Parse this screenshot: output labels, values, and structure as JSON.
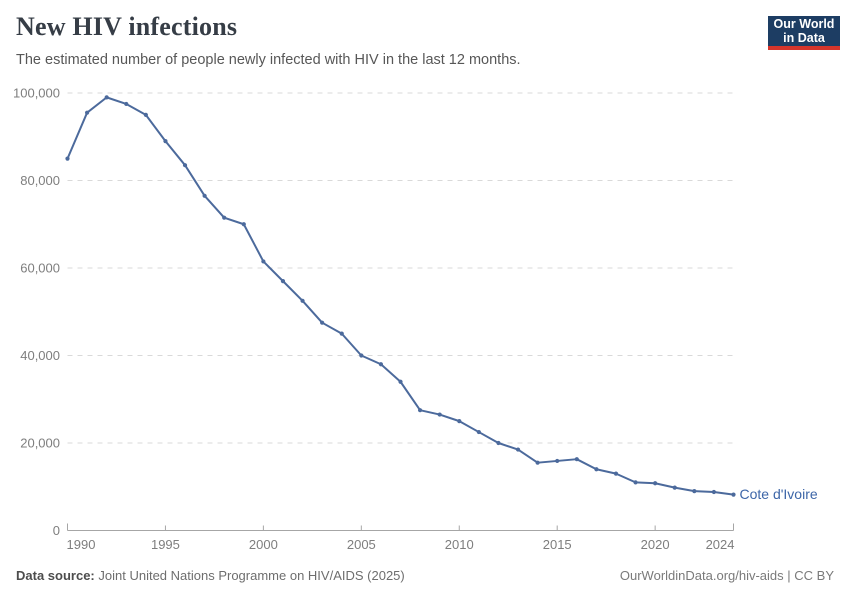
{
  "header": {
    "title": "New HIV infections",
    "subtitle": "The estimated number of people newly infected with HIV in the last 12 months.",
    "logo": {
      "line1": "Our World",
      "line2": "in Data"
    }
  },
  "chart_data": {
    "type": "line",
    "title": "New HIV infections",
    "entity_label": "Cote d'Ivoire",
    "grid": "horizontal-dashed",
    "legend_position": "end-of-line-label",
    "xlabel": "",
    "ylabel": "",
    "xlim": [
      1990,
      2024
    ],
    "ylim": [
      0,
      100000
    ],
    "xticks": [
      1990,
      1995,
      2000,
      2005,
      2010,
      2015,
      2020,
      2024
    ],
    "yticks": [
      0,
      20000,
      40000,
      60000,
      80000,
      100000
    ],
    "ytick_labels": [
      "0",
      "20,000",
      "40,000",
      "60,000",
      "80,000",
      "100,000"
    ],
    "x": [
      1990,
      1991,
      1992,
      1993,
      1994,
      1995,
      1996,
      1997,
      1998,
      1999,
      2000,
      2001,
      2002,
      2003,
      2004,
      2005,
      2006,
      2007,
      2008,
      2009,
      2010,
      2011,
      2012,
      2013,
      2014,
      2015,
      2016,
      2017,
      2018,
      2019,
      2020,
      2021,
      2022,
      2023,
      2024
    ],
    "series": [
      {
        "name": "Cote d'Ivoire",
        "color": "#4C6A9C",
        "values": [
          85000,
          95500,
          99000,
          97500,
          95000,
          89000,
          83500,
          76500,
          71500,
          70000,
          61500,
          57000,
          52500,
          47500,
          45000,
          40000,
          38000,
          34000,
          27500,
          26500,
          25000,
          22500,
          20000,
          18500,
          15500,
          15900,
          16300,
          14000,
          13000,
          11000,
          10800,
          9800,
          9000,
          8800,
          8200
        ]
      }
    ]
  },
  "footer": {
    "datasource_label": "Data source:",
    "datasource_value": "Joint United Nations Programme on HIV/AIDS (2025)",
    "credit": "OurWorldinData.org/hiv-aids | CC BY"
  },
  "colors": {
    "line": "#4C6A9C",
    "entity_label": "#3D66A8",
    "gridline": "#d9d9d9",
    "axis": "#a6a6a6",
    "logo_navy": "#1d3d63",
    "logo_red": "#d6352b"
  }
}
